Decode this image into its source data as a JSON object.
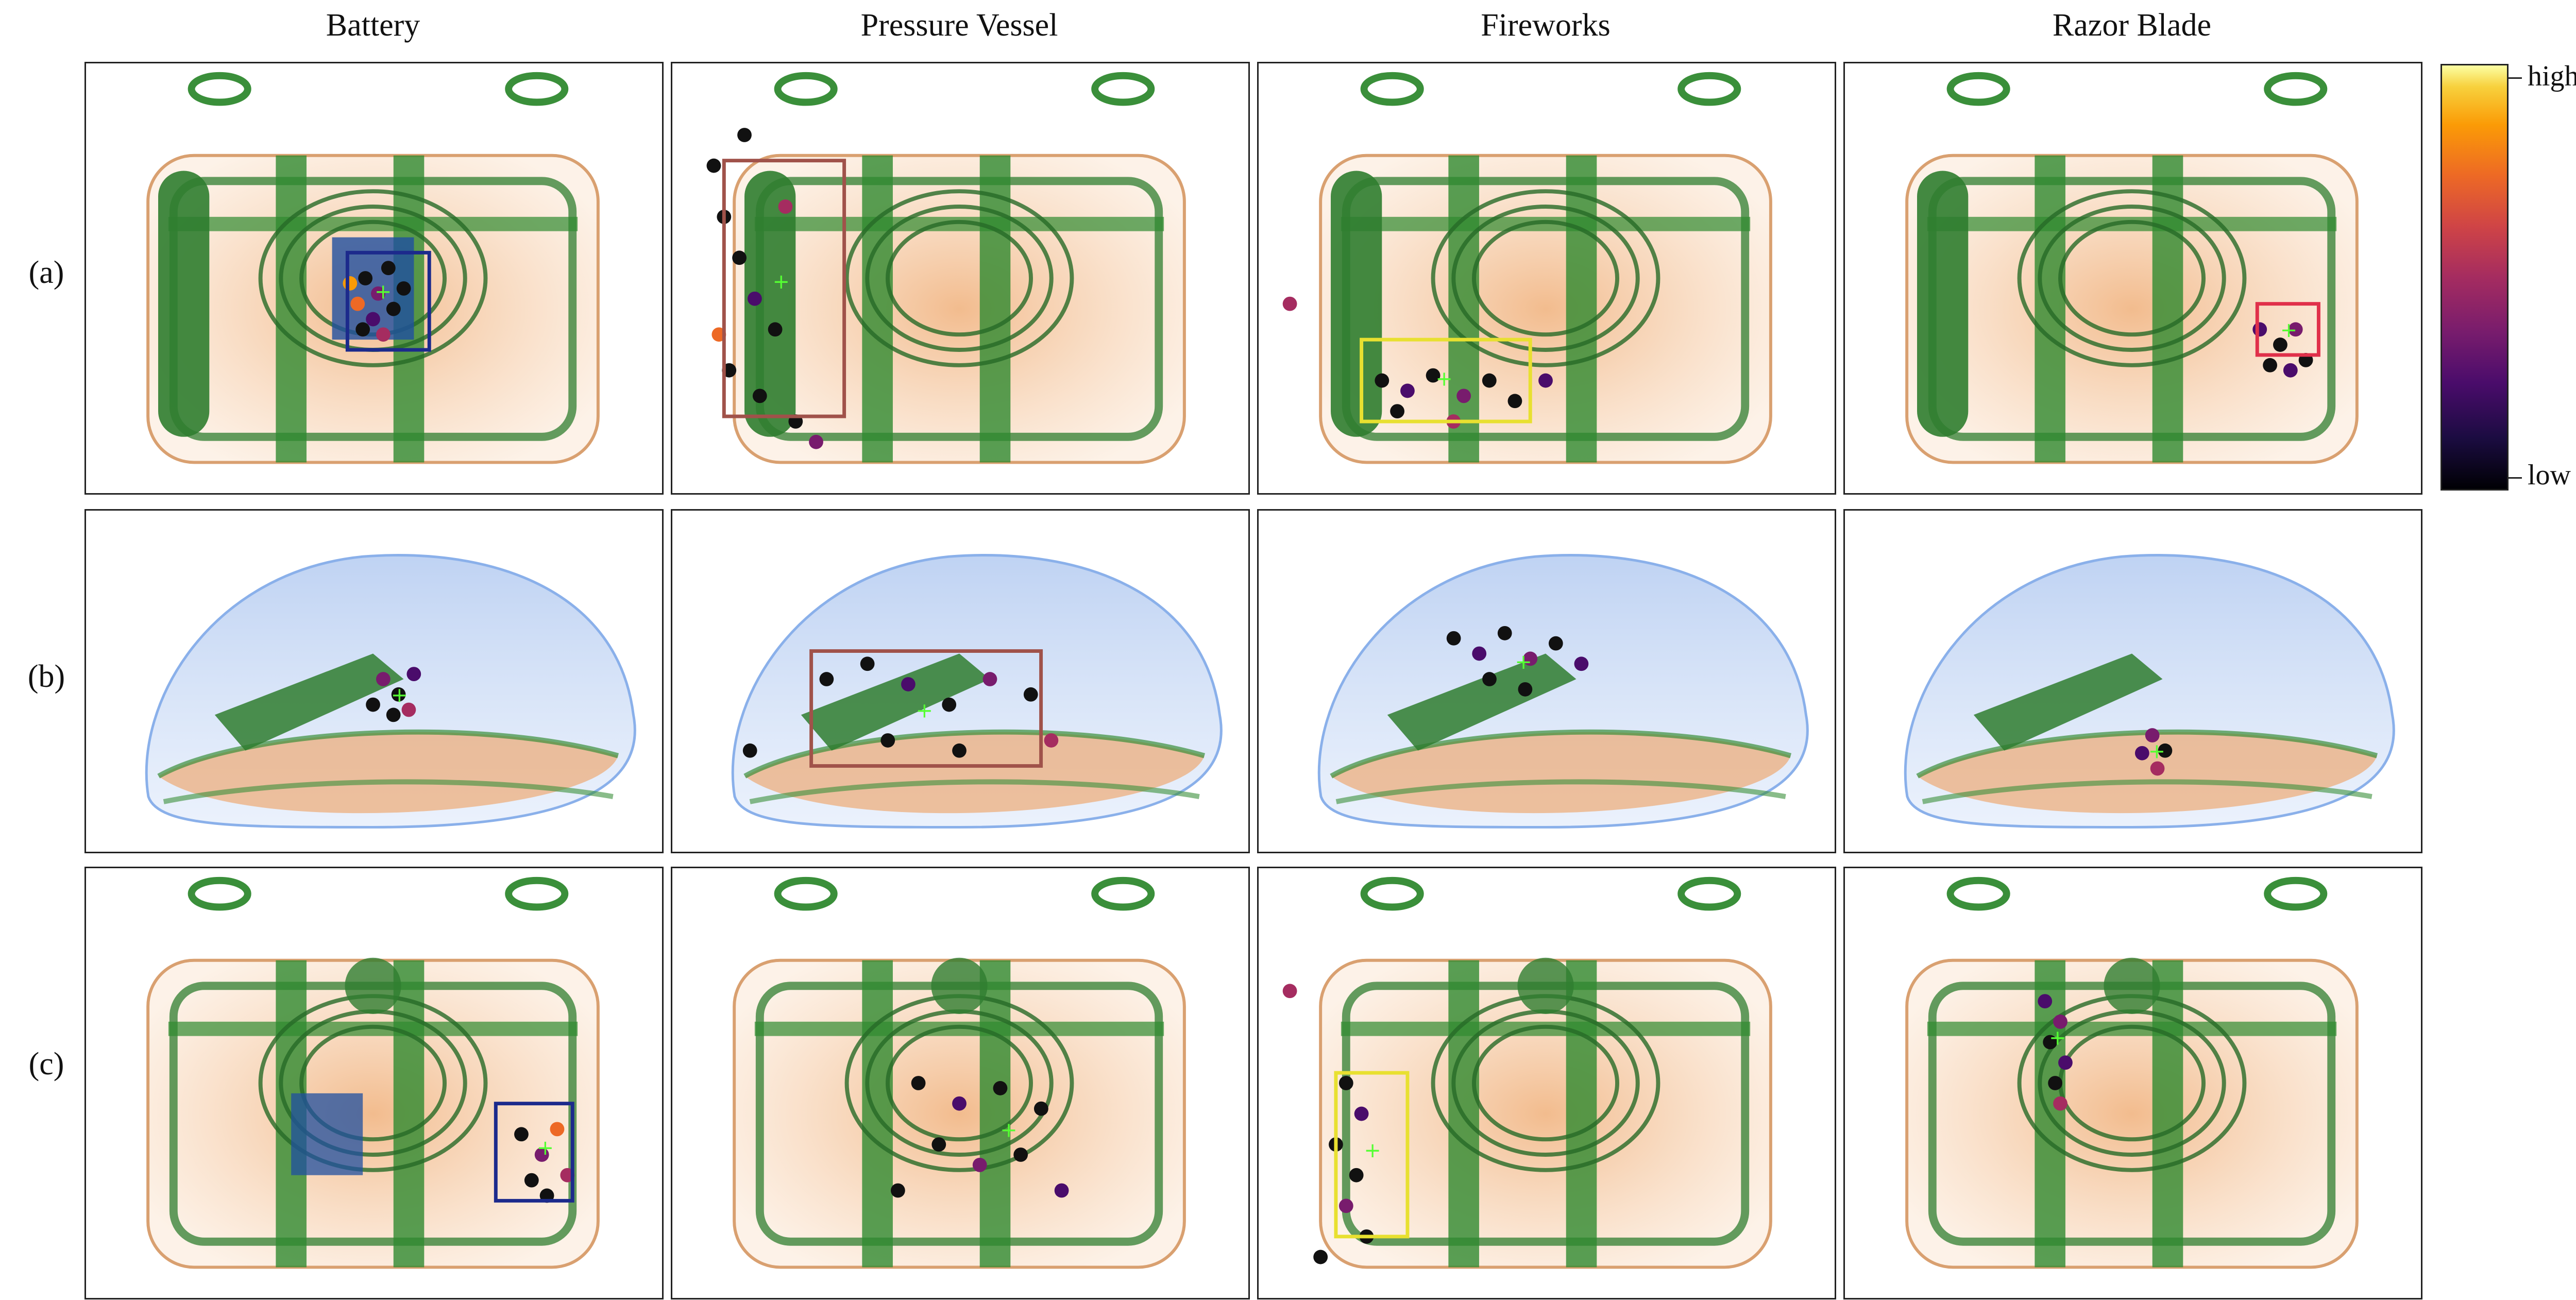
{
  "columns": [
    "Battery",
    "Pressure Vessel",
    "Fireworks",
    "Razor Blade"
  ],
  "rows": [
    "(a)",
    "(b)",
    "(c)"
  ],
  "colorbar": {
    "high_label": "high",
    "low_label": "low"
  },
  "box_colors": {
    "battery": "#1c2a8c",
    "pressure_vessel": "#a0524a",
    "fireworks": "#e8e030",
    "razor_blade": "#e0304a"
  }
}
